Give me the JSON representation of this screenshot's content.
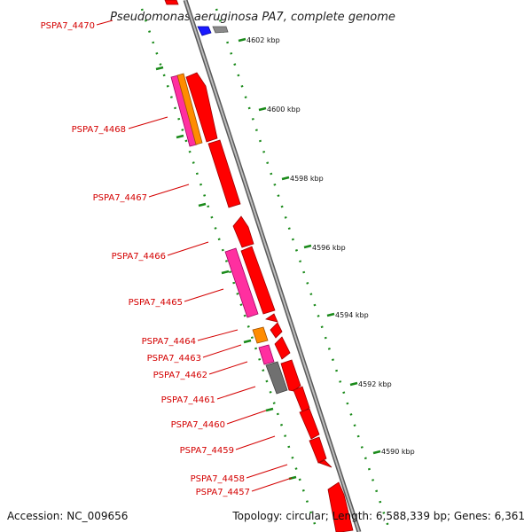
{
  "title": "Pseudomonas aeruginosa PA7, complete genome",
  "footer": {
    "accession": "Accession: NC_009656",
    "summary": "Topology: circular; Length: 6,588,339 bp; Genes: 6,361"
  },
  "colors": {
    "backbone": "#8c8c8c",
    "red": "#ff0000",
    "pink": "#ff2fa0",
    "orange": "#ff8c00",
    "gray": "#707070",
    "blue": "#1a1aff",
    "tick": "#1a8a1a",
    "label": "#d40000"
  },
  "gene_labels": [
    "PSPA7_4470",
    "PSPA7_4468",
    "PSPA7_4467",
    "PSPA7_4466",
    "PSPA7_4465",
    "PSPA7_4464",
    "PSPA7_4463",
    "PSPA7_4462",
    "PSPA7_4461",
    "PSPA7_4460",
    "PSPA7_4459",
    "PSPA7_4458",
    "PSPA7_4457"
  ],
  "kbp_labels": [
    "4602 kbp",
    "4600 kbp",
    "4598 kbp",
    "4596 kbp",
    "4594 kbp",
    "4592 kbp",
    "4590 kbp"
  ]
}
